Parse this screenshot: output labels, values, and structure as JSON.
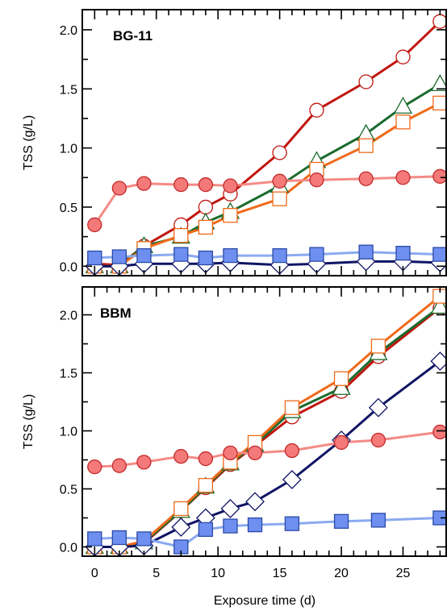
{
  "figure": {
    "xlabel": "Exposure time (d)"
  },
  "styles": {
    "dark_red": {
      "line": "#c0160f",
      "marker": "circle",
      "fill": "#ffffff",
      "stroke": "#c0160f"
    },
    "green": {
      "line": "#1b6b2e",
      "marker": "triangle",
      "fill": "#ffffff",
      "stroke": "#1b6b2e"
    },
    "orange": {
      "line": "#ef6a1a",
      "marker": "square",
      "fill": "#ffffff",
      "stroke": "#ef6a1a"
    },
    "navy": {
      "line": "#0f1464",
      "marker": "diamond",
      "fill": "#ffffff",
      "stroke": "#0f1464"
    },
    "salmon": {
      "line": "#f58a86",
      "marker": "circle",
      "fill": "#f47a7a",
      "stroke": "#c42a2a"
    },
    "blue": {
      "line": "#8aaaf0",
      "marker": "square",
      "fill": "#6f8ff0",
      "stroke": "#2a4aa8"
    }
  },
  "chart_data": [
    {
      "type": "line",
      "panel_label": "BG-11",
      "xlabel": "",
      "ylabel": "TSS (g/L)",
      "xlim": [
        -1,
        28.5
      ],
      "ylim": [
        -0.08,
        2.17
      ],
      "xticks": [
        0,
        5,
        10,
        15,
        20,
        25
      ],
      "yticks": [
        0.0,
        0.5,
        1.0,
        1.5,
        2.0
      ],
      "ytick_labels": [
        "0.0",
        "0.5",
        "1.0",
        "1.5",
        "2.0"
      ],
      "show_xtick_labels": false,
      "series": [
        {
          "style": "dark_red",
          "x": [
            0,
            2,
            4,
            7,
            9,
            11,
            15,
            18,
            22,
            25,
            28
          ],
          "y": [
            0.02,
            0.01,
            0.17,
            0.35,
            0.5,
            0.61,
            0.96,
            1.32,
            1.56,
            1.77,
            2.07
          ]
        },
        {
          "style": "green",
          "x": [
            0,
            2,
            4,
            7,
            9,
            11,
            15,
            18,
            22,
            25,
            28
          ],
          "y": [
            0.0,
            0.0,
            0.17,
            0.25,
            0.37,
            0.46,
            0.68,
            0.89,
            1.12,
            1.35,
            1.54
          ]
        },
        {
          "style": "orange",
          "x": [
            0,
            2,
            4,
            7,
            9,
            11,
            15,
            18,
            22,
            25,
            28
          ],
          "y": [
            0.0,
            0.0,
            0.15,
            0.26,
            0.33,
            0.43,
            0.57,
            0.82,
            1.02,
            1.22,
            1.38
          ]
        },
        {
          "style": "navy",
          "x": [
            0,
            2,
            4,
            7,
            9,
            11,
            15,
            18,
            22,
            25,
            28
          ],
          "y": [
            0.0,
            0.0,
            0.02,
            0.02,
            0.02,
            0.03,
            0.01,
            0.02,
            0.04,
            0.04,
            0.03
          ]
        },
        {
          "style": "salmon",
          "x": [
            0,
            2,
            4,
            7,
            9,
            11,
            15,
            18,
            22,
            25,
            28
          ],
          "y": [
            0.35,
            0.66,
            0.7,
            0.69,
            0.69,
            0.68,
            0.72,
            0.73,
            0.74,
            0.75,
            0.76
          ]
        },
        {
          "style": "blue",
          "x": [
            0,
            2,
            4,
            7,
            9,
            11,
            15,
            18,
            22,
            25,
            28
          ],
          "y": [
            0.07,
            0.08,
            0.09,
            0.1,
            0.07,
            0.09,
            0.09,
            0.1,
            0.12,
            0.11,
            0.1
          ]
        }
      ]
    },
    {
      "type": "line",
      "panel_label": "BBM",
      "xlabel": "Exposure time (d)",
      "ylabel": "TSS (g/L)",
      "xlim": [
        -1,
        28.5
      ],
      "ylim": [
        -0.08,
        2.24
      ],
      "xticks": [
        0,
        5,
        10,
        15,
        20,
        25
      ],
      "yticks": [
        0.0,
        0.5,
        1.0,
        1.5,
        2.0
      ],
      "ytick_labels": [
        "0.0",
        "0.5",
        "1.0",
        "1.5",
        "2.0"
      ],
      "show_xtick_labels": true,
      "series": [
        {
          "style": "dark_red",
          "x": [
            0,
            2,
            4,
            7,
            9,
            11,
            13,
            16,
            20,
            23,
            28
          ],
          "y": [
            0.0,
            0.0,
            0.03,
            0.31,
            0.51,
            0.71,
            0.87,
            1.12,
            1.34,
            1.64,
            2.06
          ]
        },
        {
          "style": "green",
          "x": [
            0,
            2,
            4,
            7,
            9,
            11,
            13,
            16,
            20,
            23,
            28
          ],
          "y": [
            0.0,
            0.0,
            0.04,
            0.31,
            0.52,
            0.72,
            0.88,
            1.17,
            1.37,
            1.67,
            2.07
          ]
        },
        {
          "style": "orange",
          "x": [
            0,
            2,
            4,
            7,
            9,
            11,
            13,
            16,
            20,
            23,
            28
          ],
          "y": [
            0.0,
            0.0,
            0.05,
            0.33,
            0.53,
            0.73,
            0.9,
            1.2,
            1.45,
            1.73,
            2.16
          ]
        },
        {
          "style": "navy",
          "x": [
            0,
            2,
            4,
            7,
            9,
            11,
            13,
            16,
            20,
            23,
            28
          ],
          "y": [
            0.0,
            0.0,
            0.01,
            0.17,
            0.25,
            0.33,
            0.39,
            0.58,
            0.92,
            1.2,
            1.6
          ]
        },
        {
          "style": "salmon",
          "x": [
            0,
            2,
            4,
            7,
            9,
            11,
            13,
            16,
            20,
            23,
            28
          ],
          "y": [
            0.69,
            0.7,
            0.73,
            0.78,
            0.76,
            0.81,
            0.81,
            0.83,
            0.9,
            0.92,
            0.99
          ]
        },
        {
          "style": "blue",
          "x": [
            0,
            2,
            4,
            7,
            9,
            11,
            13,
            16,
            20,
            23,
            28
          ],
          "y": [
            0.07,
            0.08,
            0.07,
            0.0,
            0.15,
            0.18,
            0.19,
            0.2,
            0.22,
            0.23,
            0.25
          ]
        }
      ]
    }
  ]
}
